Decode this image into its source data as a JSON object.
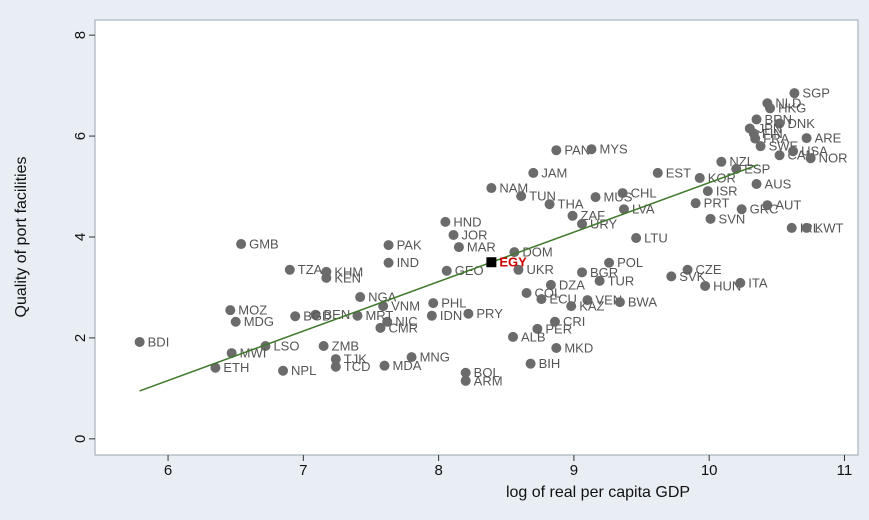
{
  "chart_data": {
    "type": "scatter",
    "x_label": "log of real per capita GDP",
    "y_label": "Quality of port facilities",
    "xlim": [
      5.46,
      11.1
    ],
    "ylim": [
      -0.32,
      8.3
    ],
    "xticks": [
      6,
      7,
      8,
      9,
      10,
      11
    ],
    "yticks": [
      0,
      2,
      4,
      6,
      8
    ],
    "grid": false,
    "color": "#6b6b6b",
    "labels": [
      "SGP",
      "NLD",
      "HKG",
      "BRN",
      "DNK",
      "FIN",
      "JPN",
      "FRA",
      "ARE",
      "SWE",
      "CAN",
      "USA",
      "NOR",
      "NZL",
      "ESP",
      "AUS",
      "KOR",
      "ISR",
      "PRT",
      "GRC",
      "AUT",
      "SVN",
      "IRL",
      "KWT",
      "EST",
      "PAN",
      "MYS",
      "JAM",
      "NAM",
      "TUN",
      "MUS",
      "CHL",
      "THA",
      "LVA",
      "ZAF",
      "URY",
      "LTU",
      "HND",
      "JOR",
      "MAR",
      "DOM",
      "UKR",
      "GEO",
      "POL",
      "BGR",
      "CZE",
      "SVK",
      "TUR",
      "HUN",
      "ITA",
      "DZA",
      "COL",
      "ECU",
      "VEN",
      "KAZ",
      "BWA",
      "PER",
      "CRI",
      "ALB",
      "MKD",
      "BIH",
      "BOL",
      "ARM",
      "PRY",
      "IDN",
      "PHL",
      "VNM",
      "NGA",
      "NIC",
      "CMR",
      "MRT",
      "BEN",
      "MNG",
      "MDA",
      "TJK",
      "TCD",
      "LSO",
      "ZMB",
      "NPL",
      "MWI",
      "ETH",
      "BDI",
      "MOZ",
      "MDG",
      "BGD",
      "TZA",
      "KHM",
      "KEN",
      "GMB",
      "PAK",
      "IND"
    ],
    "x": [
      10.63,
      10.43,
      10.45,
      10.35,
      10.52,
      10.33,
      10.3,
      10.34,
      10.72,
      10.38,
      10.52,
      10.62,
      10.75,
      10.09,
      10.2,
      10.35,
      9.93,
      9.99,
      9.9,
      10.24,
      10.43,
      10.01,
      10.61,
      10.72,
      9.62,
      8.87,
      9.13,
      8.7,
      8.39,
      8.61,
      9.16,
      9.36,
      8.82,
      9.37,
      8.99,
      9.06,
      9.46,
      8.05,
      8.11,
      8.15,
      8.56,
      8.59,
      8.06,
      9.26,
      9.06,
      9.84,
      9.72,
      9.19,
      9.97,
      10.23,
      8.83,
      8.65,
      8.76,
      9.1,
      8.98,
      9.34,
      8.73,
      8.86,
      8.55,
      8.87,
      8.68,
      8.2,
      8.2,
      8.22,
      7.95,
      7.96,
      7.59,
      7.42,
      7.62,
      7.57,
      7.4,
      7.09,
      7.8,
      7.6,
      7.24,
      7.24,
      6.72,
      7.15,
      6.85,
      6.47,
      6.35,
      5.79,
      6.46,
      6.5,
      6.94,
      6.9,
      7.17,
      7.17,
      6.54,
      7.63,
      7.63
    ],
    "values": [
      6.85,
      6.65,
      6.55,
      6.33,
      6.25,
      6.05,
      6.15,
      5.95,
      5.96,
      5.8,
      5.62,
      5.7,
      5.56,
      5.49,
      5.35,
      5.05,
      5.17,
      4.91,
      4.67,
      4.55,
      4.63,
      4.36,
      4.18,
      4.18,
      5.27,
      5.72,
      5.74,
      5.27,
      4.97,
      4.81,
      4.79,
      4.87,
      4.65,
      4.55,
      4.42,
      4.26,
      3.98,
      4.3,
      4.04,
      3.8,
      3.7,
      3.35,
      3.33,
      3.49,
      3.3,
      3.35,
      3.22,
      3.13,
      3.03,
      3.09,
      3.05,
      2.89,
      2.77,
      2.75,
      2.63,
      2.71,
      2.18,
      2.32,
      2.02,
      1.8,
      1.49,
      1.31,
      1.15,
      2.48,
      2.44,
      2.69,
      2.63,
      2.81,
      2.32,
      2.2,
      2.44,
      2.46,
      1.62,
      1.45,
      1.58,
      1.43,
      1.84,
      1.84,
      1.35,
      1.7,
      1.41,
      1.92,
      2.55,
      2.32,
      2.43,
      3.35,
      3.31,
      3.19,
      3.86,
      3.84,
      3.49
    ],
    "highlight": {
      "label": "EGY",
      "x": 8.39,
      "value": 3.5,
      "color": "#000000",
      "label_color": "#cc0000"
    },
    "fit_line": {
      "x": [
        5.79,
        10.36
      ],
      "values": [
        0.95,
        5.43
      ],
      "color": "#3e7a2a"
    }
  }
}
